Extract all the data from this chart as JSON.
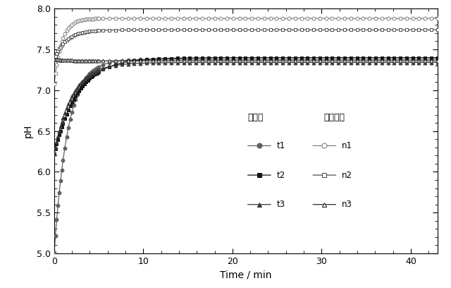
{
  "title": "",
  "xlabel": "Time / min",
  "ylabel": "pH",
  "xlim": [
    0,
    43
  ],
  "ylim": [
    5.0,
    8.0
  ],
  "xticks": [
    0,
    10,
    20,
    30,
    40
  ],
  "yticks": [
    5.0,
    5.5,
    6.0,
    6.5,
    7.0,
    7.5,
    8.0
  ],
  "legend_title1": "改質水",
  "legend_title2": "未改質水",
  "background_color": "#ffffff",
  "series": {
    "t1": {
      "label": "t1",
      "color": "#606060",
      "marker": "o",
      "filled": true,
      "y_start": 5.01,
      "y_plateau": 7.38,
      "rise_rate": 0.65
    },
    "t2": {
      "label": "t2",
      "color": "#151515",
      "marker": "s",
      "filled": true,
      "y_start": 6.22,
      "y_plateau": 7.4,
      "rise_rate": 0.38
    },
    "t3": {
      "label": "t3",
      "color": "#383838",
      "marker": "^",
      "filled": true,
      "y_start": 6.22,
      "y_plateau": 7.34,
      "rise_rate": 0.5
    },
    "n1": {
      "label": "n1",
      "color": "#808080",
      "marker": "o",
      "filled": false,
      "y_start": 7.08,
      "y_plateau": 7.88,
      "rise_rate": 1.2
    },
    "n2": {
      "label": "n2",
      "color": "#505050",
      "marker": "s",
      "filled": false,
      "y_start": 7.38,
      "y_plateau": 7.74,
      "rise_rate": 0.75
    },
    "n3": {
      "label": "n3",
      "color": "#282828",
      "marker": "^",
      "filled": false,
      "y_start": 7.38,
      "y_plateau": 7.36,
      "rise_rate": 0.55
    }
  }
}
